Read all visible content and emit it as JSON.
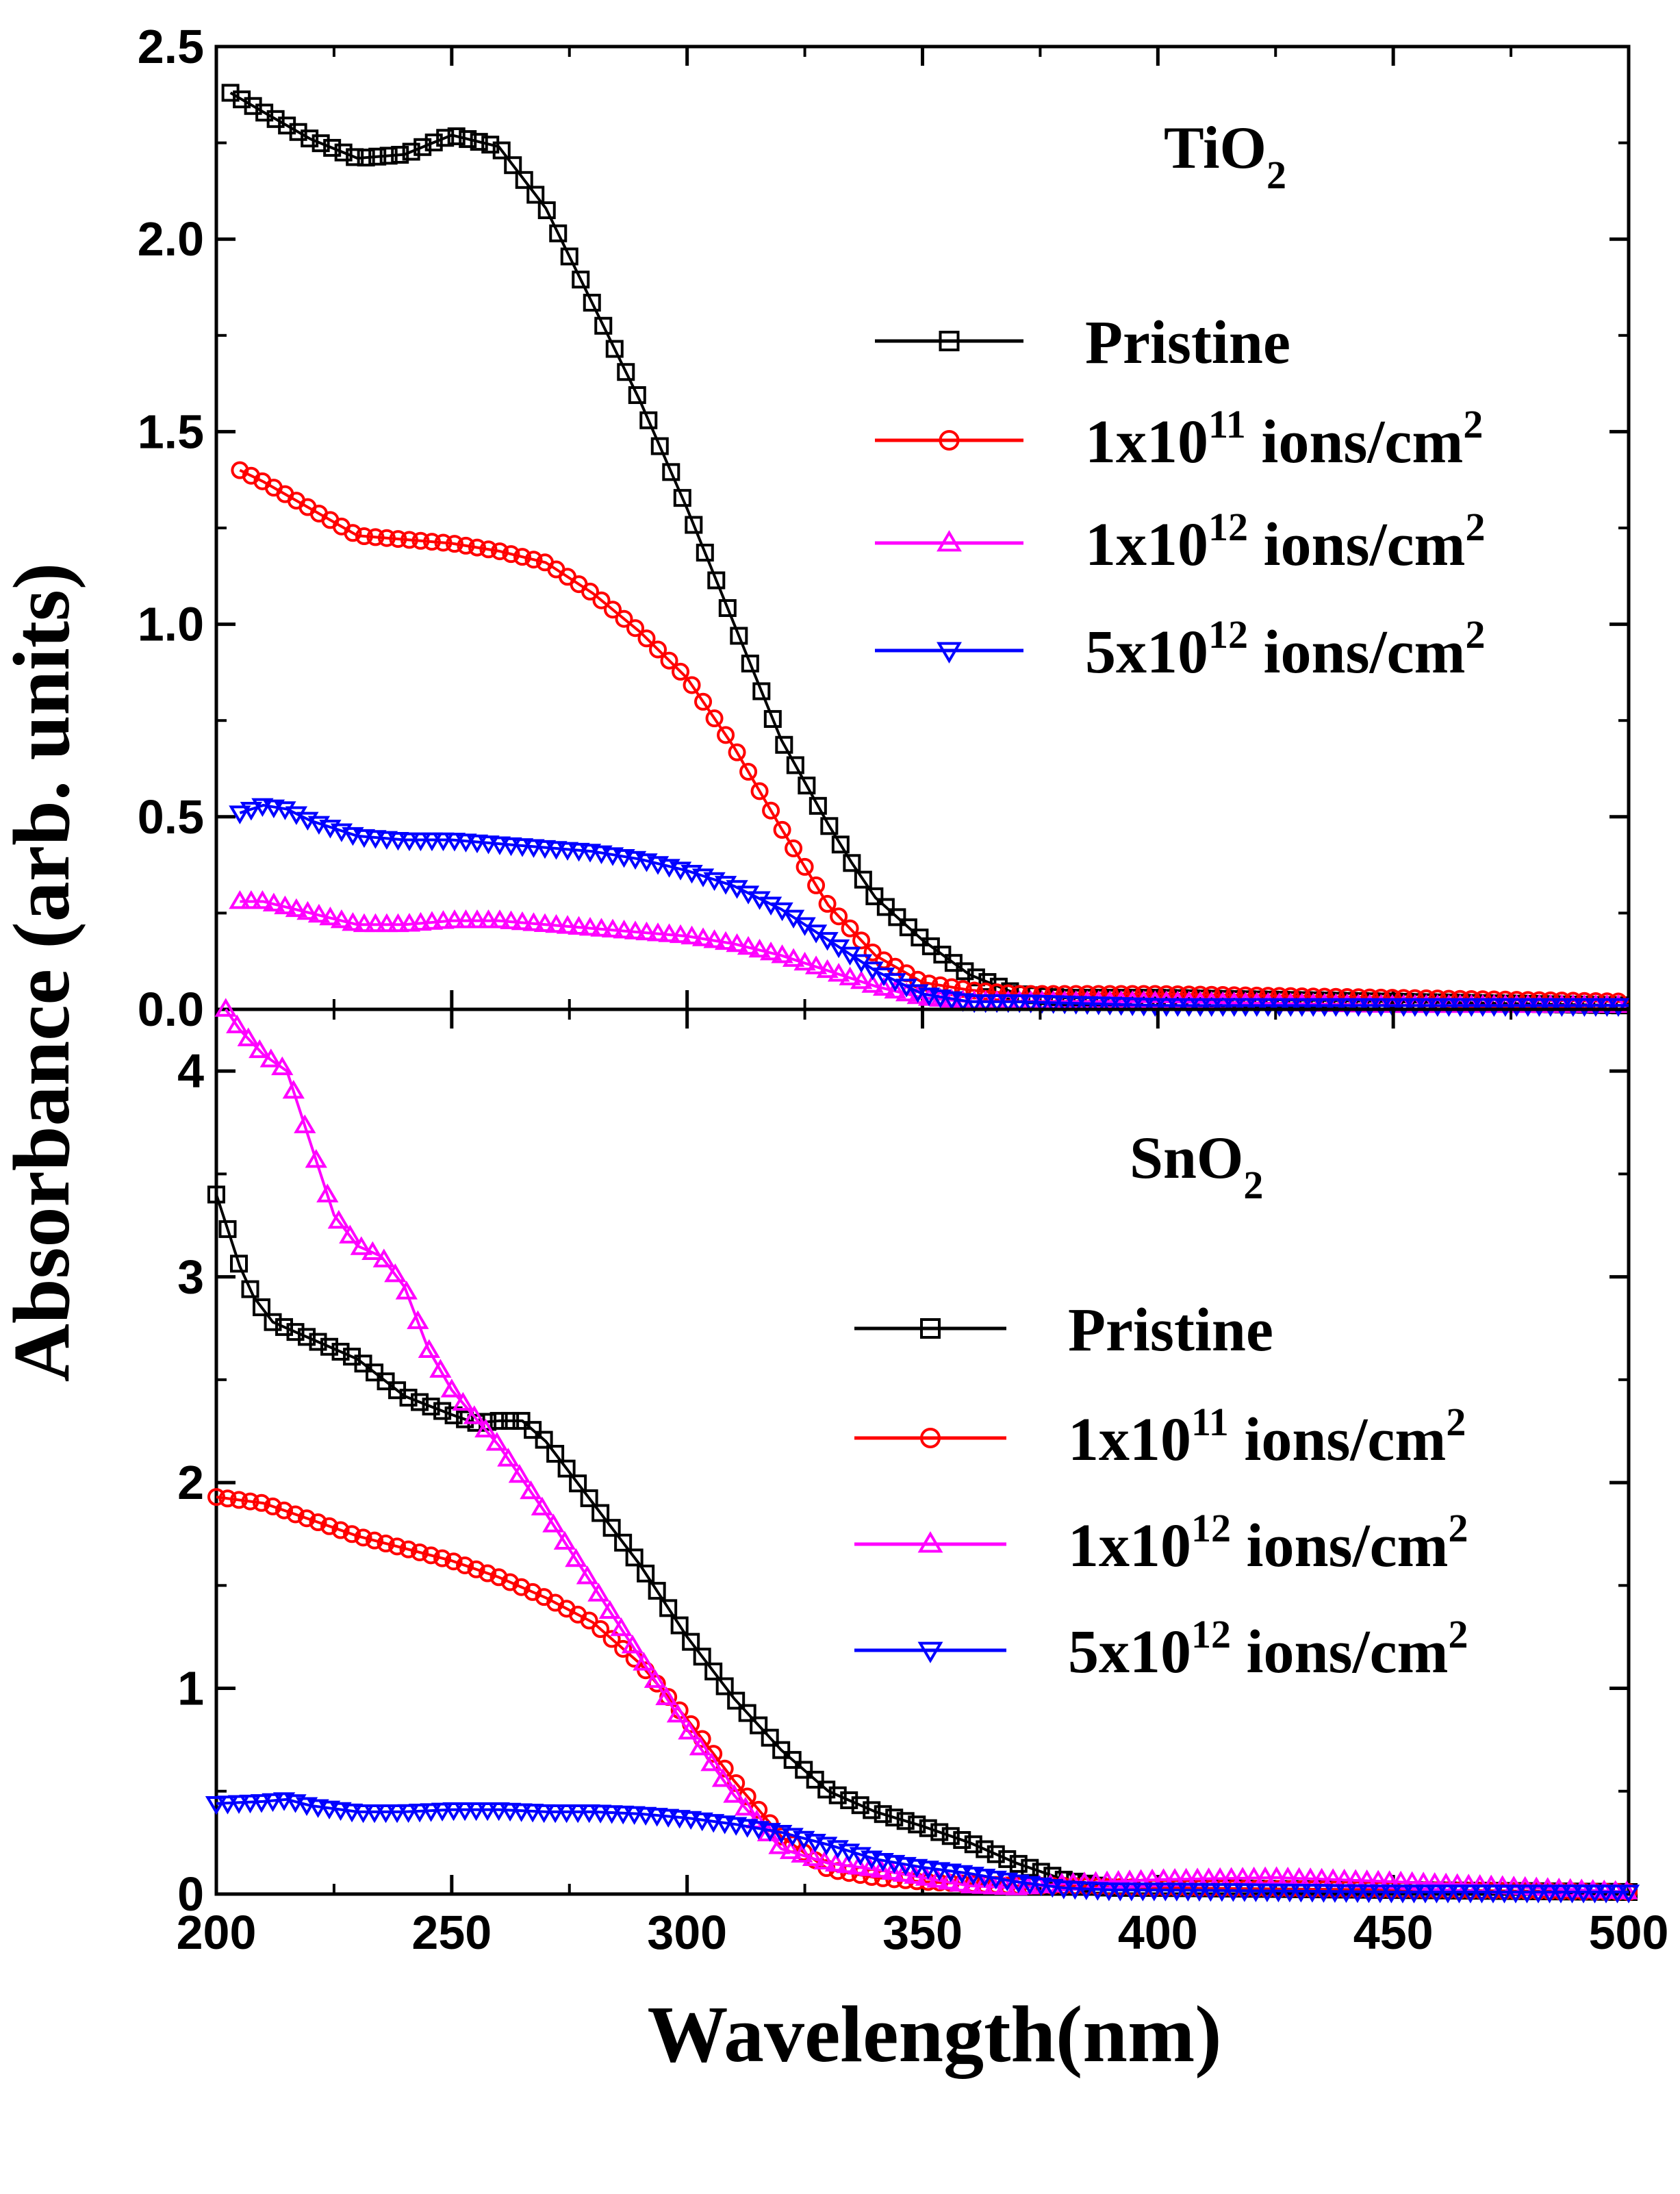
{
  "chart_data": [
    {
      "type": "line",
      "title": "TiO2",
      "title_main": "TiO",
      "title_sub": "2",
      "xlabel": "Wavelength(nm)",
      "ylabel": "Absorbance (arb. units)",
      "xlim": [
        200,
        500
      ],
      "ylim": [
        0,
        2.5
      ],
      "xticks": [
        200,
        250,
        300,
        350,
        400,
        450,
        500
      ],
      "yticks": [
        "0.0",
        "0.5",
        "1.0",
        "1.5",
        "2.0",
        "2.5"
      ],
      "legend_position": "right",
      "series": [
        {
          "name": "Pristine",
          "label_base": "Pristine",
          "label_exp": "",
          "label_tail": "",
          "color": "#000000",
          "marker": "square",
          "x": [
            203,
            210,
            220,
            230,
            240,
            250,
            260,
            270,
            280,
            290,
            300,
            310,
            320,
            330,
            335,
            340,
            350,
            360,
            370,
            380,
            400,
            450,
            500
          ],
          "y": [
            2.38,
            2.33,
            2.26,
            2.21,
            2.22,
            2.27,
            2.24,
            2.08,
            1.83,
            1.58,
            1.3,
            1.0,
            0.7,
            0.48,
            0.38,
            0.29,
            0.18,
            0.09,
            0.04,
            0.03,
            0.03,
            0.02,
            0.01
          ]
        },
        {
          "name": "1x10^11 ions/cm^2",
          "label_base": "1x10",
          "label_exp": "11",
          "label_tail": " ions/cm",
          "color": "#ff0000",
          "marker": "circle",
          "x": [
            205,
            210,
            220,
            230,
            240,
            250,
            260,
            270,
            280,
            290,
            300,
            310,
            320,
            330,
            340,
            350,
            360,
            370,
            380,
            400,
            450,
            500
          ],
          "y": [
            1.4,
            1.37,
            1.3,
            1.23,
            1.22,
            1.21,
            1.19,
            1.16,
            1.08,
            0.98,
            0.86,
            0.68,
            0.47,
            0.27,
            0.14,
            0.07,
            0.05,
            0.04,
            0.04,
            0.04,
            0.03,
            0.02
          ]
        },
        {
          "name": "1x10^12 ions/cm^2",
          "label_base": "1x10",
          "label_exp": "12",
          "label_tail": " ions/cm",
          "color": "#ff00ff",
          "marker": "triangle-up",
          "x": [
            205,
            210,
            220,
            230,
            240,
            250,
            260,
            270,
            280,
            290,
            300,
            310,
            320,
            330,
            340,
            350,
            360,
            380,
            400,
            450,
            500
          ],
          "y": [
            0.28,
            0.28,
            0.25,
            0.22,
            0.22,
            0.23,
            0.23,
            0.22,
            0.21,
            0.2,
            0.19,
            0.17,
            0.14,
            0.1,
            0.06,
            0.03,
            0.02,
            0.02,
            0.02,
            0.01,
            0.01
          ]
        },
        {
          "name": "5x10^12 ions/cm^2",
          "label_base": "5x10",
          "label_exp": "12",
          "label_tail": " ions/cm",
          "color": "#0000ff",
          "marker": "triangle-down",
          "x": [
            205,
            210,
            215,
            220,
            230,
            240,
            250,
            260,
            270,
            280,
            290,
            300,
            310,
            320,
            330,
            340,
            350,
            360,
            370,
            400,
            450,
            500
          ],
          "y": [
            0.51,
            0.53,
            0.52,
            0.49,
            0.45,
            0.44,
            0.44,
            0.43,
            0.42,
            0.41,
            0.39,
            0.36,
            0.32,
            0.26,
            0.18,
            0.1,
            0.04,
            0.02,
            0.02,
            0.01,
            0.01,
            0.01
          ]
        }
      ]
    },
    {
      "type": "line",
      "title": "SnO2",
      "title_main": "SnO",
      "title_sub": "2",
      "xlabel": "Wavelength(nm)",
      "ylabel": "Absorbance (arb. units)",
      "xlim": [
        200,
        500
      ],
      "ylim": [
        0,
        4.3
      ],
      "xticks": [
        200,
        250,
        300,
        350,
        400,
        450,
        500
      ],
      "yticks": [
        "0",
        "1",
        "2",
        "3",
        "4"
      ],
      "legend_position": "right",
      "series": [
        {
          "name": "Pristine",
          "label_base": "Pristine",
          "label_exp": "",
          "label_tail": "",
          "color": "#000000",
          "marker": "square",
          "x": [
            200,
            205,
            208,
            212,
            220,
            230,
            240,
            250,
            255,
            260,
            265,
            270,
            280,
            290,
            300,
            310,
            320,
            330,
            340,
            350,
            360,
            370,
            380,
            390,
            400,
            450,
            500
          ],
          "y": [
            3.4,
            3.05,
            2.9,
            2.78,
            2.7,
            2.6,
            2.42,
            2.33,
            2.29,
            2.3,
            2.3,
            2.2,
            1.9,
            1.6,
            1.25,
            0.95,
            0.7,
            0.5,
            0.4,
            0.33,
            0.25,
            0.15,
            0.07,
            0.03,
            0.03,
            0.02,
            0.01
          ]
        },
        {
          "name": "1x10^11 ions/cm^2",
          "label_base": "1x10",
          "label_exp": "11",
          "label_tail": " ions/cm",
          "color": "#ff0000",
          "marker": "circle",
          "x": [
            200,
            210,
            220,
            230,
            240,
            250,
            260,
            270,
            280,
            290,
            300,
            310,
            320,
            330,
            340,
            350,
            360,
            370,
            380,
            400,
            450,
            500
          ],
          "y": [
            1.93,
            1.9,
            1.82,
            1.74,
            1.68,
            1.62,
            1.54,
            1.44,
            1.32,
            1.12,
            0.85,
            0.55,
            0.28,
            0.12,
            0.08,
            0.06,
            0.05,
            0.04,
            0.04,
            0.03,
            0.02,
            0.01
          ]
        },
        {
          "name": "1x10^12 ions/cm^2",
          "label_base": "1x10",
          "label_exp": "12",
          "label_tail": " ions/cm",
          "color": "#ff00ff",
          "marker": "triangle-up",
          "x": [
            202,
            205,
            210,
            215,
            220,
            225,
            230,
            235,
            240,
            245,
            250,
            260,
            270,
            280,
            290,
            300,
            310,
            320,
            330,
            340,
            350,
            360,
            370,
            380,
            400,
            425,
            450,
            500
          ],
          "y": [
            4.3,
            4.2,
            4.08,
            4.0,
            3.65,
            3.3,
            3.15,
            3.1,
            2.95,
            2.65,
            2.45,
            2.18,
            1.85,
            1.5,
            1.15,
            0.8,
            0.48,
            0.22,
            0.15,
            0.12,
            0.08,
            0.04,
            0.03,
            0.05,
            0.07,
            0.08,
            0.06,
            0.01
          ]
        },
        {
          "name": "5x10^12 ions/cm^2",
          "label_base": "5x10",
          "label_exp": "12",
          "label_tail": " ions/cm",
          "color": "#0000ff",
          "marker": "triangle-down",
          "x": [
            200,
            210,
            215,
            220,
            230,
            240,
            250,
            260,
            270,
            280,
            290,
            300,
            310,
            320,
            330,
            340,
            350,
            360,
            370,
            380,
            390,
            400,
            450,
            500
          ],
          "y": [
            0.44,
            0.45,
            0.46,
            0.43,
            0.4,
            0.4,
            0.41,
            0.41,
            0.4,
            0.4,
            0.39,
            0.37,
            0.34,
            0.3,
            0.24,
            0.17,
            0.13,
            0.1,
            0.06,
            0.03,
            0.02,
            0.02,
            0.01,
            0.01
          ]
        }
      ]
    }
  ]
}
